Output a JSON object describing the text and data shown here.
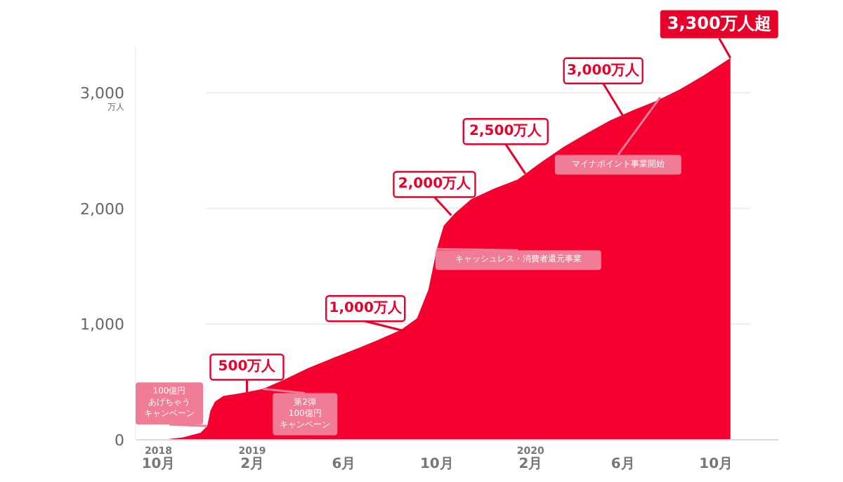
{
  "chart_data": {
    "type": "area",
    "x": [
      "2018-10-05",
      "2018-11-01",
      "2018-11-25",
      "2018-12-04",
      "2018-12-08",
      "2018-12-14",
      "2018-12-25",
      "2019-01-15",
      "2019-02-15",
      "2019-03-15",
      "2019-04-15",
      "2019-05-15",
      "2019-06-15",
      "2019-07-15",
      "2019-08-15",
      "2019-09-05",
      "2019-09-20",
      "2019-10-01",
      "2019-10-10",
      "2019-10-25",
      "2019-11-15",
      "2019-12-15",
      "2020-01-15",
      "2020-02-15",
      "2020-03-15",
      "2020-04-15",
      "2020-05-15",
      "2020-06-15",
      "2020-07-15",
      "2020-08-15",
      "2020-09-15",
      "2020-10-20"
    ],
    "series": [
      {
        "color": "#f5002f",
        "values": [
          0,
          20,
          60,
          120,
          250,
          330,
          380,
          400,
          440,
          520,
          620,
          700,
          780,
          860,
          950,
          1050,
          1300,
          1650,
          1850,
          1960,
          2080,
          2170,
          2250,
          2400,
          2530,
          2650,
          2760,
          2850,
          2930,
          3030,
          3150,
          3300
        ]
      }
    ],
    "xlim": [
      "2018-09-01",
      "2020-11-15"
    ],
    "ylim": [
      0,
      3400
    ],
    "xticks": [
      {
        "value": "2018-10",
        "label": "2018\n10月"
      },
      {
        "value": "2019-02",
        "label": "2019\n2月"
      },
      {
        "value": "2019-06",
        "label": "6月"
      },
      {
        "value": "2019-10",
        "label": "10月"
      },
      {
        "value": "2020-02",
        "label": "2020\n2月"
      },
      {
        "value": "2020-06",
        "label": "6月"
      },
      {
        "value": "2020-10",
        "label": "10月"
      }
    ],
    "yticks": [
      0,
      {
        "value": 1000,
        "label": "1,000"
      },
      {
        "value": 2000,
        "label": "2,000"
      },
      {
        "value": 3000,
        "label": "3,000$_{万人}$"
      }
    ],
    "grid": "y",
    "annotations": [
      {
        "text": "100億円あげちゃうキャンペーン",
        "x": "2018-12-04",
        "y": 120
      },
      {
        "text": "500万人",
        "x": "2019-01-25",
        "y": 410
      },
      {
        "text": "第2弾100億円キャンペーン",
        "x": "2019-02-15",
        "y": 440
      },
      {
        "text": "1,000万人",
        "x": "2019-08-20",
        "y": 940
      },
      {
        "text": "2,000万人",
        "x": "2019-10-20",
        "y": 1940
      },
      {
        "text": "キャッシュレス・消費者還元事業",
        "x": "2019-10-01",
        "y": 1650
      },
      {
        "text": "2,500万人",
        "x": "2020-01-25",
        "y": 2300
      },
      {
        "text": "3,000万人",
        "x": "2020-06-01",
        "y": 2800
      },
      {
        "text": "マイナポイント事業開始",
        "x": "2020-07-20",
        "y": 2960
      },
      {
        "text": "3,300万人超",
        "x": "2020-10-20",
        "y": 3300
      }
    ]
  }
}
